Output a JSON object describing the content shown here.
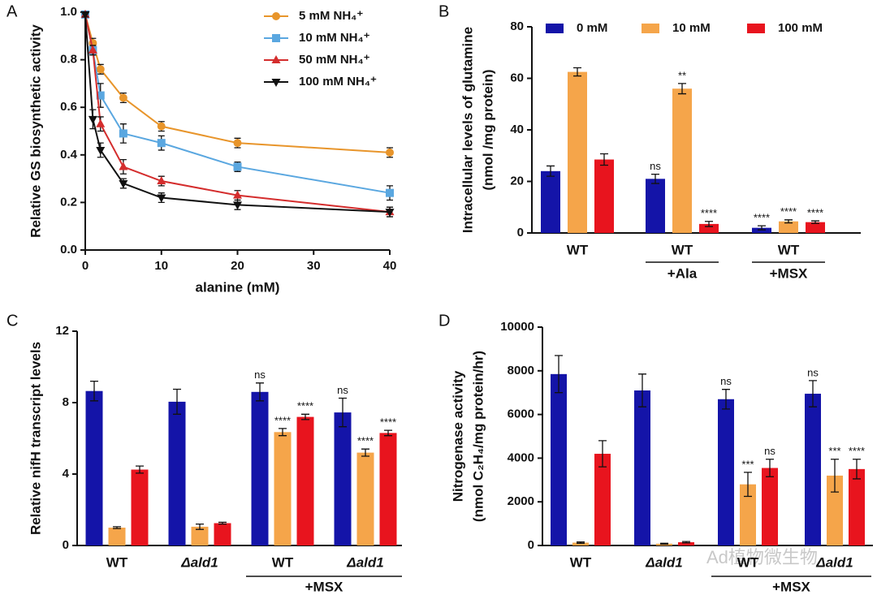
{
  "chart_data": [
    {
      "type": "line",
      "panel": "A",
      "xlabel": "alanine (mM)",
      "ylabel": [
        "Relative GS biosynthetic activity"
      ],
      "x": [
        0,
        1,
        2,
        5,
        10,
        20,
        40
      ],
      "xlim": [
        0,
        40
      ],
      "xticks": [
        0,
        10,
        20,
        30,
        40
      ],
      "ylim": [
        0,
        1
      ],
      "yticks": [
        {
          "value": 0,
          "label": "0.0"
        },
        0.2,
        0.4,
        0.6,
        0.8,
        {
          "value": 1,
          "label": "1.0"
        }
      ],
      "series": [
        {
          "name": "5 mM NH₄⁺",
          "color": "#e8952b",
          "marker": "circle",
          "values": [
            0.99,
            0.87,
            0.76,
            0.64,
            0.52,
            0.45,
            0.41
          ],
          "errors": [
            0.01,
            0.02,
            0.02,
            0.02,
            0.02,
            0.02,
            0.02
          ]
        },
        {
          "name": "10 mM NH₄⁺",
          "color": "#5aa7e0",
          "marker": "square",
          "values": [
            0.99,
            0.84,
            0.65,
            0.49,
            0.45,
            0.35,
            0.24
          ],
          "errors": [
            0.01,
            0.02,
            0.05,
            0.04,
            0.03,
            0.02,
            0.03
          ]
        },
        {
          "name": "50 mM NH₄⁺",
          "color": "#d42d2d",
          "marker": "triangle",
          "values": [
            0.99,
            0.84,
            0.53,
            0.35,
            0.29,
            0.23,
            0.16
          ],
          "errors": [
            0.01,
            0.02,
            0.03,
            0.03,
            0.02,
            0.02,
            0.02
          ]
        },
        {
          "name": "100 mM NH₄⁺",
          "color": "#111111",
          "marker": "triangle-down",
          "values": [
            0.99,
            0.55,
            0.42,
            0.28,
            0.22,
            0.19,
            0.16
          ],
          "errors": [
            0.01,
            0.04,
            0.03,
            0.02,
            0.02,
            0.02,
            0.02
          ]
        }
      ]
    },
    {
      "type": "bar",
      "panel": "B",
      "ylabel": [
        "Intracellular levels of glutamine",
        "(nmol /mg protein)"
      ],
      "categories": [
        "WT",
        "WT",
        "WT"
      ],
      "category_sublabels": [
        null,
        "+Ala",
        "+MSX"
      ],
      "ylim": [
        0,
        80
      ],
      "yticks": [
        0,
        20,
        40,
        60,
        80
      ],
      "series": [
        {
          "name": "0 mM",
          "color": "#1414a8",
          "values": [
            24,
            21,
            2
          ],
          "errors": [
            2,
            1.8,
            0.8
          ],
          "significance": [
            null,
            "ns",
            "****"
          ]
        },
        {
          "name": "10 mM",
          "color": "#f5a54a",
          "values": [
            62.5,
            56,
            4.5
          ],
          "errors": [
            1.6,
            2,
            0.6
          ],
          "significance": [
            null,
            "**",
            "****"
          ]
        },
        {
          "name": "100 mM",
          "color": "#e8141e",
          "values": [
            28.5,
            3.5,
            4.2
          ],
          "errors": [
            2.2,
            1,
            0.5
          ],
          "significance": [
            null,
            "****",
            "****"
          ]
        }
      ]
    },
    {
      "type": "bar",
      "panel": "C",
      "ylabel": [
        "Relative nifH transcript levels"
      ],
      "categories": [
        "WT",
        "Δald1",
        "WT",
        "Δald1"
      ],
      "group_label": "+MSX",
      "ylim": [
        0,
        12
      ],
      "yticks": [
        0,
        4,
        8,
        12
      ],
      "series": [
        {
          "color": "#1414a8",
          "values": [
            8.65,
            8.05,
            8.6,
            7.45
          ],
          "errors": [
            0.55,
            0.7,
            0.5,
            0.8
          ],
          "significance": [
            null,
            null,
            "ns",
            "ns"
          ]
        },
        {
          "color": "#f5a54a",
          "values": [
            1.0,
            1.05,
            6.35,
            5.2
          ],
          "errors": [
            0.05,
            0.15,
            0.2,
            0.2
          ],
          "significance": [
            null,
            null,
            "****",
            "****"
          ]
        },
        {
          "color": "#e8141e",
          "values": [
            4.25,
            1.25,
            7.2,
            6.3
          ],
          "errors": [
            0.2,
            0.05,
            0.15,
            0.15
          ],
          "significance": [
            null,
            null,
            "****",
            "****"
          ]
        }
      ]
    },
    {
      "type": "bar",
      "panel": "D",
      "ylabel": [
        "Nitrogenase activity",
        "(nmol C₂H₄/mg protein/hr)"
      ],
      "categories": [
        "WT",
        "Δald1",
        "WT",
        "Δald1"
      ],
      "group_label": "+MSX",
      "ylim": [
        0,
        10000
      ],
      "yticks": [
        0,
        2000,
        4000,
        6000,
        8000,
        10000
      ],
      "series": [
        {
          "color": "#1414a8",
          "values": [
            7850,
            7100,
            6700,
            6950
          ],
          "errors": [
            850,
            750,
            450,
            600
          ],
          "significance": [
            null,
            null,
            "ns",
            "ns"
          ]
        },
        {
          "color": "#f5a54a",
          "values": [
            130,
            80,
            2800,
            3200
          ],
          "errors": [
            30,
            20,
            550,
            750
          ],
          "significance": [
            null,
            null,
            "***",
            "***"
          ]
        },
        {
          "color": "#e8141e",
          "values": [
            4200,
            150,
            3550,
            3500
          ],
          "errors": [
            600,
            30,
            400,
            450
          ],
          "significance": [
            null,
            null,
            "ns",
            "****"
          ]
        }
      ]
    }
  ],
  "watermark": "Ad植物微生物"
}
